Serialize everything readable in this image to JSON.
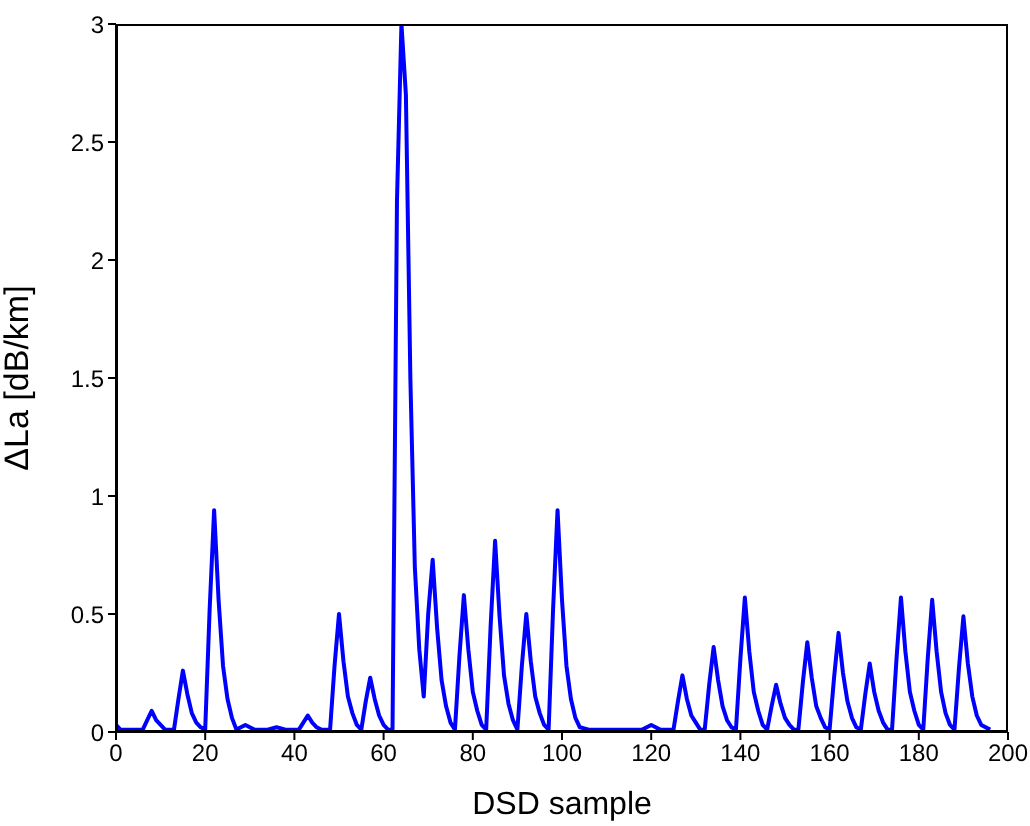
{
  "chart_data": {
    "type": "line",
    "xlabel": "DSD sample",
    "ylabel": "ΔLa [dB/km]",
    "xlim": [
      0,
      200
    ],
    "xticks": [
      0,
      20,
      40,
      60,
      80,
      100,
      120,
      140,
      160,
      180,
      200
    ],
    "ylim": [
      0,
      3
    ],
    "yticks": [
      0,
      0.5,
      1,
      1.5,
      2,
      2.5,
      3
    ],
    "grid": false,
    "marker": "none",
    "line_style": "solid",
    "series": [
      {
        "color": "#0000ff",
        "x": [
          0,
          1,
          6,
          7,
          8,
          9,
          10,
          11,
          12,
          13,
          14,
          15,
          16,
          17,
          18,
          19,
          20,
          21,
          22,
          23,
          24,
          25,
          26,
          27,
          28,
          29,
          30,
          31,
          34,
          36,
          38,
          41,
          42,
          43,
          44,
          45,
          46,
          48,
          49,
          50,
          51,
          52,
          53,
          54,
          55,
          56,
          57,
          58,
          59,
          60,
          61,
          62,
          63,
          64,
          65,
          66,
          67,
          68,
          69,
          70,
          71,
          72,
          73,
          74,
          75,
          76,
          77,
          78,
          79,
          80,
          81,
          82,
          83,
          84,
          85,
          86,
          87,
          88,
          89,
          90,
          91,
          92,
          93,
          94,
          95,
          96,
          97,
          98,
          99,
          100,
          101,
          102,
          103,
          104,
          106,
          118,
          119,
          120,
          121,
          122,
          125,
          126,
          127,
          128,
          129,
          130,
          131,
          132,
          133,
          134,
          135,
          136,
          137,
          138,
          139,
          140,
          141,
          142,
          143,
          144,
          145,
          146,
          147,
          148,
          149,
          150,
          151,
          152,
          153,
          154,
          155,
          156,
          157,
          158,
          159,
          160,
          161,
          162,
          163,
          164,
          165,
          166,
          167,
          168,
          169,
          170,
          171,
          172,
          173,
          174,
          175,
          176,
          177,
          178,
          179,
          180,
          181,
          182,
          183,
          184,
          185,
          186,
          187,
          188,
          189,
          190,
          191,
          192,
          193,
          194,
          196
        ],
        "values": [
          0.03,
          0.01,
          0.01,
          0.05,
          0.09,
          0.05,
          0.03,
          0.01,
          0.01,
          0.01,
          0.14,
          0.26,
          0.16,
          0.08,
          0.04,
          0.02,
          0.01,
          0.52,
          0.94,
          0.56,
          0.28,
          0.14,
          0.06,
          0.01,
          0.02,
          0.03,
          0.02,
          0.01,
          0.01,
          0.02,
          0.01,
          0.01,
          0.04,
          0.07,
          0.04,
          0.02,
          0.01,
          0.01,
          0.28,
          0.5,
          0.3,
          0.15,
          0.08,
          0.03,
          0.01,
          0.13,
          0.23,
          0.14,
          0.07,
          0.03,
          0.01,
          0.01,
          2.25,
          3,
          2.7,
          1.5,
          0.7,
          0.35,
          0.15,
          0.5,
          0.73,
          0.44,
          0.22,
          0.11,
          0.04,
          0.01,
          0.32,
          0.58,
          0.35,
          0.17,
          0.09,
          0.03,
          0.01,
          0.45,
          0.81,
          0.49,
          0.24,
          0.12,
          0.05,
          0.01,
          0.28,
          0.5,
          0.3,
          0.15,
          0.08,
          0.03,
          0.01,
          0.52,
          0.94,
          0.56,
          0.28,
          0.14,
          0.06,
          0.02,
          0.01,
          0.01,
          0.02,
          0.03,
          0.02,
          0.01,
          0.01,
          0.13,
          0.24,
          0.14,
          0.07,
          0.04,
          0.01,
          0.01,
          0.2,
          0.36,
          0.22,
          0.11,
          0.05,
          0.02,
          0.01,
          0.31,
          0.57,
          0.34,
          0.17,
          0.09,
          0.03,
          0.01,
          0.11,
          0.2,
          0.12,
          0.06,
          0.03,
          0.01,
          0.01,
          0.21,
          0.38,
          0.23,
          0.11,
          0.06,
          0.02,
          0.01,
          0.23,
          0.42,
          0.25,
          0.13,
          0.06,
          0.02,
          0.01,
          0.16,
          0.29,
          0.17,
          0.09,
          0.04,
          0.01,
          0.01,
          0.31,
          0.57,
          0.34,
          0.17,
          0.09,
          0.03,
          0.01,
          0.31,
          0.56,
          0.34,
          0.17,
          0.08,
          0.03,
          0.01,
          0.27,
          0.49,
          0.29,
          0.15,
          0.07,
          0.03,
          0.01
        ]
      }
    ]
  }
}
